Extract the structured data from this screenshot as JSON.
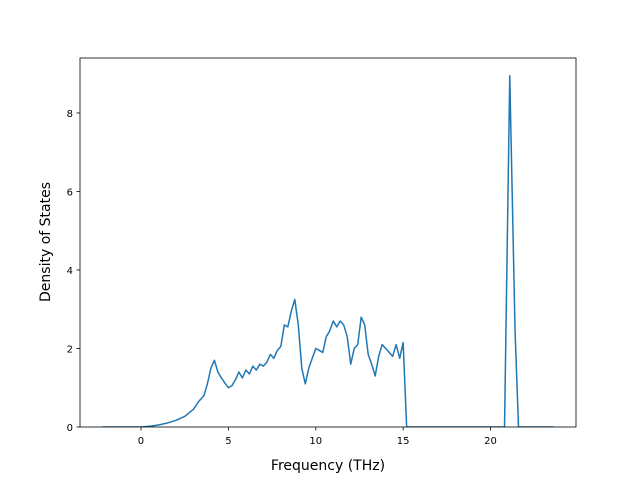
{
  "chart_data": {
    "type": "line",
    "xlabel": "Frequency (THz)",
    "ylabel": "Density of States",
    "x": [
      -2.2,
      0,
      0.5,
      1,
      1.5,
      2,
      2.5,
      3,
      3.3,
      3.6,
      3.8,
      4.0,
      4.2,
      4.4,
      4.6,
      4.8,
      5.0,
      5.2,
      5.4,
      5.6,
      5.8,
      6.0,
      6.2,
      6.4,
      6.6,
      6.8,
      7.0,
      7.2,
      7.4,
      7.6,
      7.8,
      8.0,
      8.2,
      8.4,
      8.6,
      8.8,
      9.0,
      9.2,
      9.4,
      9.6,
      9.8,
      10.0,
      10.2,
      10.4,
      10.6,
      10.8,
      11.0,
      11.2,
      11.4,
      11.6,
      11.8,
      12.0,
      12.2,
      12.4,
      12.6,
      12.8,
      13.0,
      13.2,
      13.4,
      13.6,
      13.8,
      14.0,
      14.2,
      14.4,
      14.6,
      14.8,
      15.0,
      15.2,
      20.8,
      21.1,
      21.4,
      21.6,
      23.6
    ],
    "values": [
      0,
      0,
      0.02,
      0.05,
      0.1,
      0.17,
      0.27,
      0.45,
      0.65,
      0.8,
      1.1,
      1.5,
      1.7,
      1.4,
      1.25,
      1.12,
      1.0,
      1.05,
      1.2,
      1.4,
      1.25,
      1.45,
      1.35,
      1.55,
      1.45,
      1.6,
      1.55,
      1.65,
      1.85,
      1.75,
      1.95,
      2.05,
      2.6,
      2.55,
      2.95,
      3.25,
      2.6,
      1.5,
      1.1,
      1.5,
      1.75,
      2.0,
      1.95,
      1.9,
      2.3,
      2.45,
      2.7,
      2.55,
      2.7,
      2.6,
      2.3,
      1.6,
      2.0,
      2.1,
      2.8,
      2.6,
      1.85,
      1.6,
      1.3,
      1.8,
      2.1,
      2.0,
      1.9,
      1.8,
      2.1,
      1.75,
      2.15,
      0,
      0,
      8.95,
      2.5,
      0,
      0
    ],
    "color": "#1f77b4",
    "xlim": [
      -3.49,
      24.89
    ],
    "xticks": [
      0,
      5,
      10,
      15,
      20
    ],
    "ylim": [
      0,
      9.4
    ],
    "yticks": [
      0,
      2,
      4,
      6,
      8
    ]
  }
}
